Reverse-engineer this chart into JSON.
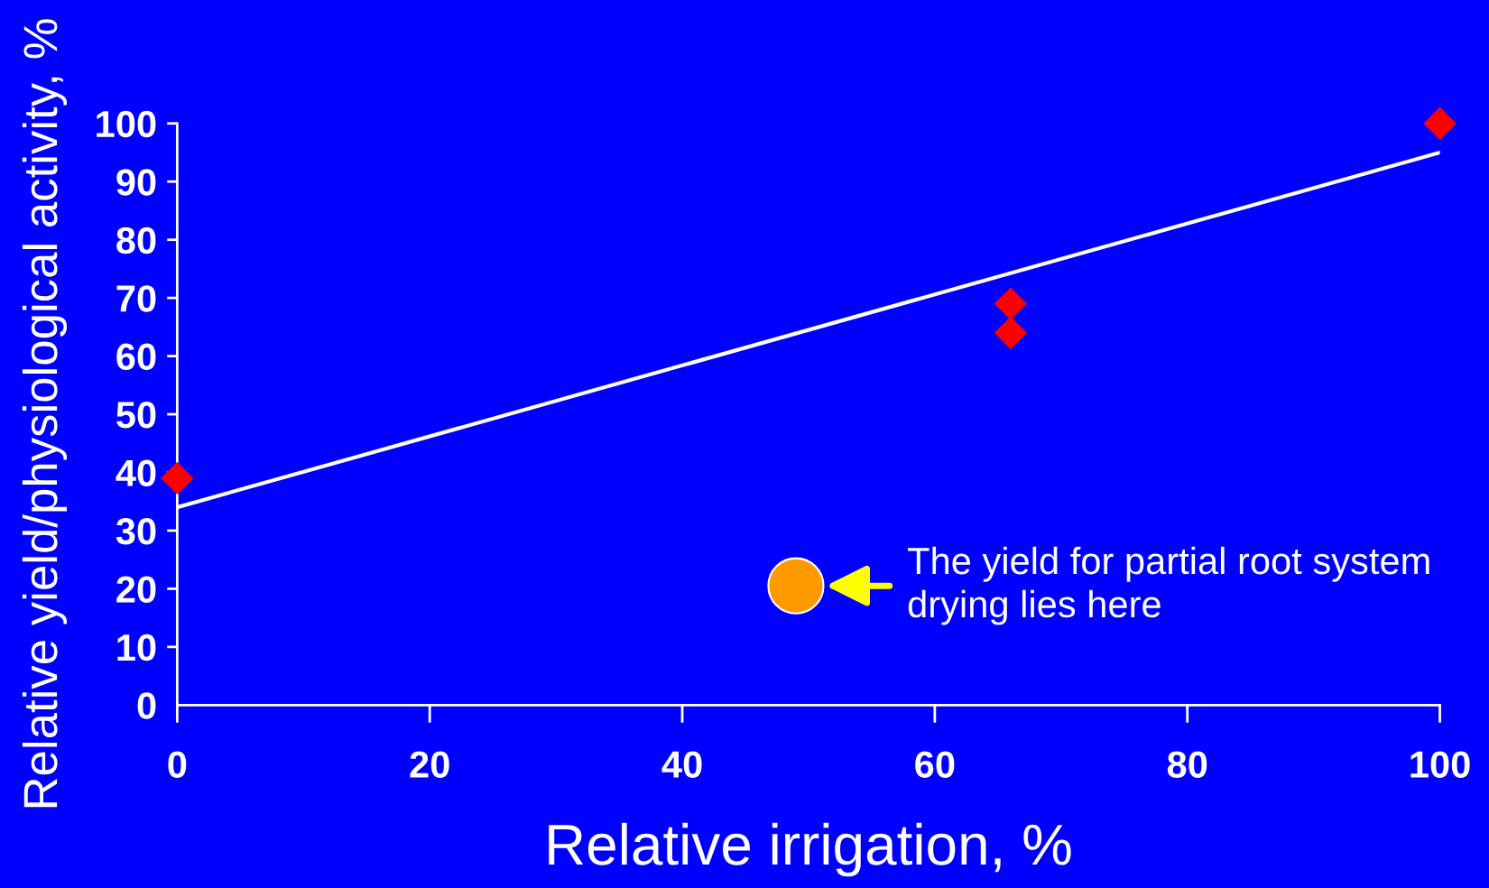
{
  "chart_data": {
    "type": "scatter",
    "xlabel": "Relative irrigation, %",
    "ylabel": "Relative yield/physiological activity, %",
    "xlim": [
      0,
      100
    ],
    "xticks": [
      0,
      20,
      40,
      60,
      80,
      100
    ],
    "ylim": [
      0,
      100
    ],
    "yticks": [
      0,
      10,
      20,
      30,
      40,
      50,
      60,
      70,
      80,
      90,
      100
    ],
    "grid": false,
    "legend": false,
    "series": [
      {
        "type": "line",
        "color": "#ffffff",
        "marker": "none",
        "line_style": "solid",
        "x": [
          0,
          100
        ],
        "values": [
          34,
          95
        ]
      },
      {
        "type": "scatter",
        "color": "#ff0000",
        "marker": "diamond",
        "x": [
          0,
          66,
          66,
          100
        ],
        "values": [
          39,
          69,
          64,
          100
        ]
      },
      {
        "type": "scatter",
        "color": "#ff9900",
        "marker": "circle",
        "x": [
          49
        ],
        "values": [
          20.5
        ]
      }
    ],
    "annotations": [
      {
        "text": "The yield for partial root system\ndrying lies here",
        "x": 49,
        "y": 20.5
      }
    ]
  }
}
